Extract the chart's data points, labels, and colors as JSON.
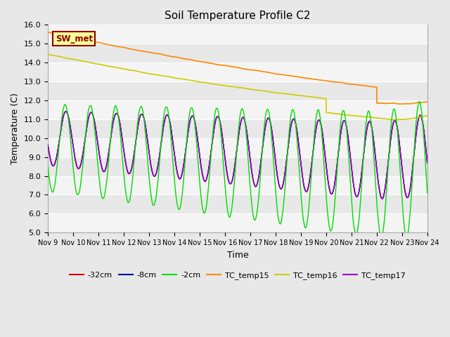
{
  "title": "Soil Temperature Profile C2",
  "xlabel": "Time",
  "ylabel": "Temperature (C)",
  "ylim": [
    5.0,
    16.0
  ],
  "yticks": [
    5.0,
    6.0,
    7.0,
    8.0,
    9.0,
    10.0,
    11.0,
    12.0,
    13.0,
    14.0,
    15.0,
    16.0
  ],
  "xlim_days": [
    0,
    15
  ],
  "xtick_labels": [
    "Nov 9",
    "Nov 10",
    "Nov 11",
    "Nov 12",
    "Nov 13",
    "Nov 14",
    "Nov 15",
    "Nov 16",
    "Nov 17",
    "Nov 18",
    "Nov 19",
    "Nov 20",
    "Nov 21",
    "Nov 22",
    "Nov 23",
    "Nov 24"
  ],
  "swmet_label": "SW_met",
  "swmet_bg": "#ffff99",
  "swmet_border": "#8b0000",
  "legend_entries": [
    "-32cm",
    "-8cm",
    "-2cm",
    "TC_temp15",
    "TC_temp16",
    "TC_temp17"
  ],
  "line_colors": [
    "#cc0000",
    "#000099",
    "#00dd00",
    "#ff8800",
    "#cccc00",
    "#9900cc"
  ],
  "plot_bg": "#e8e8e8",
  "fig_bg": "#e8e8e8",
  "band_color": "#ffffff"
}
